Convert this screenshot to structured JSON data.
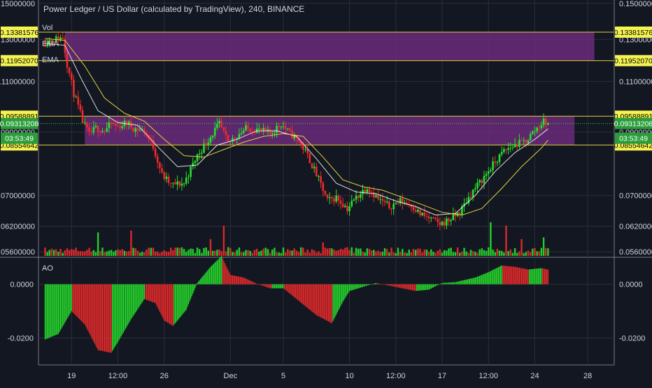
{
  "header": {
    "title": "Power Ledger / US Dollar (calculated by TradingView), 240, BINANCE",
    "indicators": [
      "Vol",
      "EMA",
      "EMA"
    ]
  },
  "colors": {
    "background": "#131722",
    "up": "#26e22c",
    "down": "#ef2b2b",
    "zone": "#6b2a7a",
    "level_line": "#e3d03d",
    "ema_fast": "#ffffff",
    "ema_slow": "#e3d03d",
    "label_bg": "#f3f352",
    "countdown_bg": "#2a9d3a"
  },
  "chart_data": [
    {
      "type": "candlestick",
      "title": "Power Ledger / US Dollar (calculated by TradingView), 240, BINANCE",
      "interval": "240",
      "exchange": "BINANCE",
      "y_scale": "log",
      "ylim": [
        0.0545,
        0.152
      ],
      "y_ticks": [
        "0.15000000",
        "0.13000000",
        "0.11000000",
        "0.09000000",
        "0.07000000",
        "0.06200000",
        "0.05600000"
      ],
      "x_ticks": [
        "19",
        "12:00",
        "26",
        "Dec",
        "5",
        "10",
        "12:00",
        "17",
        "12:00",
        "24",
        "28"
      ],
      "x_tick_times": [
        "2018-11-19",
        "2018-11-22T12:00",
        "2018-11-26",
        "2018-12-01",
        "2018-12-05",
        "2018-12-10",
        "2018-12-13T12:00",
        "2018-12-17",
        "2018-12-20T12:00",
        "2018-12-24",
        "2018-12-28"
      ],
      "price_path": [
        [
          "2018-11-17T00:00",
          0.129
        ],
        [
          "2018-11-18T08:00",
          0.131
        ],
        [
          "2018-11-18T16:00",
          0.118
        ],
        [
          "2018-11-19T04:00",
          0.105
        ],
        [
          "2018-11-19T20:00",
          0.094
        ],
        [
          "2018-11-20T08:00",
          0.089
        ],
        [
          "2018-11-20T20:00",
          0.0915
        ],
        [
          "2018-11-21T12:00",
          0.0905
        ],
        [
          "2018-11-22T00:00",
          0.093
        ],
        [
          "2018-11-22T12:00",
          0.092
        ],
        [
          "2018-11-23T04:00",
          0.0935
        ],
        [
          "2018-11-23T16:00",
          0.0915
        ],
        [
          "2018-11-24T12:00",
          0.0905
        ],
        [
          "2018-11-25T04:00",
          0.085
        ],
        [
          "2018-11-25T20:00",
          0.076
        ],
        [
          "2018-11-26T12:00",
          0.073
        ],
        [
          "2018-11-27T12:00",
          0.0735
        ],
        [
          "2018-11-28T12:00",
          0.082
        ],
        [
          "2018-11-29T12:00",
          0.0885
        ],
        [
          "2018-11-30T04:00",
          0.093
        ],
        [
          "2018-11-30T20:00",
          0.086
        ],
        [
          "2018-12-01T08:00",
          0.0885
        ],
        [
          "2018-12-02T04:00",
          0.0912
        ],
        [
          "2018-12-03T00:00",
          0.091
        ],
        [
          "2018-12-04T00:00",
          0.0895
        ],
        [
          "2018-12-04T20:00",
          0.093
        ],
        [
          "2018-12-05T12:00",
          0.0895
        ],
        [
          "2018-12-06T04:00",
          0.087
        ],
        [
          "2018-12-06T20:00",
          0.082
        ],
        [
          "2018-12-07T16:00",
          0.0745
        ],
        [
          "2018-12-08T08:00",
          0.0685
        ],
        [
          "2018-12-09T00:00",
          0.0695
        ],
        [
          "2018-12-09T20:00",
          0.0665
        ],
        [
          "2018-12-10T12:00",
          0.0695
        ],
        [
          "2018-12-11T08:00",
          0.0725
        ],
        [
          "2018-12-12T04:00",
          0.069
        ],
        [
          "2018-12-13T00:00",
          0.067
        ],
        [
          "2018-12-13T20:00",
          0.0685
        ],
        [
          "2018-12-14T16:00",
          0.0675
        ],
        [
          "2018-12-15T08:00",
          0.065
        ],
        [
          "2018-12-16T00:00",
          0.064
        ],
        [
          "2018-12-16T20:00",
          0.0625
        ],
        [
          "2018-12-17T12:00",
          0.0635
        ],
        [
          "2018-12-18T08:00",
          0.0655
        ],
        [
          "2018-12-19T04:00",
          0.0705
        ],
        [
          "2018-12-20T00:00",
          0.0745
        ],
        [
          "2018-12-20T20:00",
          0.079
        ],
        [
          "2018-12-21T16:00",
          0.0835
        ],
        [
          "2018-12-22T12:00",
          0.0855
        ],
        [
          "2018-12-23T08:00",
          0.087
        ],
        [
          "2018-12-24T04:00",
          0.0915
        ],
        [
          "2018-12-24T16:00",
          0.094
        ],
        [
          "2018-12-25T00:00",
          0.09313208
        ]
      ],
      "ema_fast_path": [
        [
          "2018-11-17T00:00",
          0.128
        ],
        [
          "2018-11-18T12:00",
          0.127
        ],
        [
          "2018-11-19T16:00",
          0.112
        ],
        [
          "2018-11-21T00:00",
          0.098
        ],
        [
          "2018-11-22T12:00",
          0.0935
        ],
        [
          "2018-11-24T00:00",
          0.0925
        ],
        [
          "2018-11-25T12:00",
          0.085
        ],
        [
          "2018-11-27T00:00",
          0.0785
        ],
        [
          "2018-11-28T12:00",
          0.079
        ],
        [
          "2018-11-30T00:00",
          0.0855
        ],
        [
          "2018-12-01T12:00",
          0.0875
        ],
        [
          "2018-12-03T00:00",
          0.0905
        ],
        [
          "2018-12-04T12:00",
          0.0905
        ],
        [
          "2018-12-06T00:00",
          0.0885
        ],
        [
          "2018-12-07T12:00",
          0.081
        ],
        [
          "2018-12-09T00:00",
          0.0735
        ],
        [
          "2018-12-10T12:00",
          0.071
        ],
        [
          "2018-12-12T00:00",
          0.0705
        ],
        [
          "2018-12-13T12:00",
          0.0685
        ],
        [
          "2018-12-15T00:00",
          0.067
        ],
        [
          "2018-12-16T12:00",
          0.0648
        ],
        [
          "2018-12-18T00:00",
          0.0652
        ],
        [
          "2018-12-19T12:00",
          0.07
        ],
        [
          "2018-12-21T00:00",
          0.077
        ],
        [
          "2018-12-22T12:00",
          0.083
        ],
        [
          "2018-12-24T00:00",
          0.0875
        ],
        [
          "2018-12-25T00:00",
          0.0912
        ]
      ],
      "ema_slow_path": [
        [
          "2018-11-17T00:00",
          0.1305
        ],
        [
          "2018-11-18T12:00",
          0.1295
        ],
        [
          "2018-11-20T00:00",
          0.117
        ],
        [
          "2018-11-21T12:00",
          0.103
        ],
        [
          "2018-11-23T00:00",
          0.097
        ],
        [
          "2018-11-24T12:00",
          0.094
        ],
        [
          "2018-11-26T00:00",
          0.0875
        ],
        [
          "2018-11-27T12:00",
          0.082
        ],
        [
          "2018-11-29T00:00",
          0.0815
        ],
        [
          "2018-11-30T12:00",
          0.084
        ],
        [
          "2018-12-02T00:00",
          0.0865
        ],
        [
          "2018-12-03T12:00",
          0.0885
        ],
        [
          "2018-12-05T00:00",
          0.0895
        ],
        [
          "2018-12-06T12:00",
          0.0885
        ],
        [
          "2018-12-08T00:00",
          0.0815
        ],
        [
          "2018-12-09T12:00",
          0.0745
        ],
        [
          "2018-12-11T00:00",
          0.0725
        ],
        [
          "2018-12-12T12:00",
          0.0715
        ],
        [
          "2018-12-14T00:00",
          0.0695
        ],
        [
          "2018-12-15T12:00",
          0.0675
        ],
        [
          "2018-12-17T00:00",
          0.0655
        ],
        [
          "2018-12-18T12:00",
          0.0648
        ],
        [
          "2018-12-20T00:00",
          0.0665
        ],
        [
          "2018-12-21T12:00",
          0.072
        ],
        [
          "2018-12-23T00:00",
          0.0785
        ],
        [
          "2018-12-24T12:00",
          0.0845
        ],
        [
          "2018-12-25T00:00",
          0.0872
        ]
      ],
      "zones": [
        {
          "top": 0.13381576,
          "bottom": 0.1195207,
          "from": "2018-11-18T12:00",
          "to": "2018-12-28T12:00"
        },
        {
          "top": 0.09588891,
          "bottom": 0.08554642,
          "from": "2018-11-20T00:00",
          "to": "2018-12-27T00:00"
        }
      ],
      "level_lines": [
        0.13381576,
        0.1195207,
        0.09588891,
        0.08554642
      ],
      "current_price": 0.09313208,
      "current_price_label": "0.09313208",
      "countdown": "03:53:49",
      "price_labels": [
        "0.13381576",
        "0.11952070",
        "0.09588891",
        "0.09313208",
        "0.08554642"
      ]
    },
    {
      "type": "bar",
      "name": "Vol",
      "volume_spikes": [
        {
          "time": "2018-11-21T00:00",
          "level": 0.7
        },
        {
          "time": "2018-11-23T12:00",
          "level": 0.75
        },
        {
          "time": "2018-11-29T12:00",
          "level": 0.5
        },
        {
          "time": "2018-11-30T12:00",
          "level": 0.9
        },
        {
          "time": "2018-12-08T00:00",
          "level": 0.4
        },
        {
          "time": "2018-12-20T16:00",
          "level": 1.0
        },
        {
          "time": "2018-12-21T20:00",
          "level": 0.9
        },
        {
          "time": "2018-12-23T00:00",
          "level": 0.5
        },
        {
          "time": "2018-12-24T16:00",
          "level": 0.55
        }
      ]
    },
    {
      "type": "bar",
      "name": "AO",
      "ylim": [
        -0.03,
        0.009
      ],
      "y_ticks": [
        "0.0000",
        "-0.0200"
      ],
      "ao_path": [
        [
          "2018-11-17T00:00",
          -0.0205
        ],
        [
          "2018-11-18T00:00",
          -0.0185
        ],
        [
          "2018-11-19T00:00",
          -0.01
        ],
        [
          "2018-11-20T00:00",
          -0.015
        ],
        [
          "2018-11-21T00:00",
          -0.0245
        ],
        [
          "2018-11-22T00:00",
          -0.0255
        ],
        [
          "2018-11-22T12:00",
          -0.0215
        ],
        [
          "2018-11-23T12:00",
          -0.013
        ],
        [
          "2018-11-24T12:00",
          -0.0055
        ],
        [
          "2018-11-25T08:00",
          -0.007
        ],
        [
          "2018-11-26T00:00",
          -0.0135
        ],
        [
          "2018-11-26T16:00",
          -0.0155
        ],
        [
          "2018-11-27T16:00",
          -0.0095
        ],
        [
          "2018-11-28T12:00",
          0.0005
        ],
        [
          "2018-11-29T12:00",
          0.0065
        ],
        [
          "2018-11-30T08:00",
          0.0105
        ],
        [
          "2018-12-01T00:00",
          0.0035
        ],
        [
          "2018-12-02T00:00",
          0.0025
        ],
        [
          "2018-12-03T00:00",
          0.0002
        ],
        [
          "2018-12-04T00:00",
          -0.0015
        ],
        [
          "2018-12-05T00:00",
          -0.0015
        ],
        [
          "2018-12-06T00:00",
          -0.0055
        ],
        [
          "2018-12-07T12:00",
          -0.0115
        ],
        [
          "2018-12-08T16:00",
          -0.0145
        ],
        [
          "2018-12-09T12:00",
          -0.0065
        ],
        [
          "2018-12-10T00:00",
          -0.0025
        ],
        [
          "2018-12-11T00:00",
          -0.001
        ],
        [
          "2018-12-12T00:00",
          0.0005
        ],
        [
          "2018-12-13T00:00",
          -0.0005
        ],
        [
          "2018-12-14T00:00",
          -0.0015
        ],
        [
          "2018-12-15T00:00",
          -0.0025
        ],
        [
          "2018-12-16T00:00",
          -0.002
        ],
        [
          "2018-12-17T00:00",
          0.0005
        ],
        [
          "2018-12-18T00:00",
          0.0008
        ],
        [
          "2018-12-19T12:00",
          0.0025
        ],
        [
          "2018-12-20T12:00",
          0.0045
        ],
        [
          "2018-12-21T12:00",
          0.007
        ],
        [
          "2018-12-22T12:00",
          0.0065
        ],
        [
          "2018-12-23T12:00",
          0.0055
        ],
        [
          "2018-12-24T12:00",
          0.006
        ],
        [
          "2018-12-25T00:00",
          0.0055
        ]
      ]
    }
  ]
}
